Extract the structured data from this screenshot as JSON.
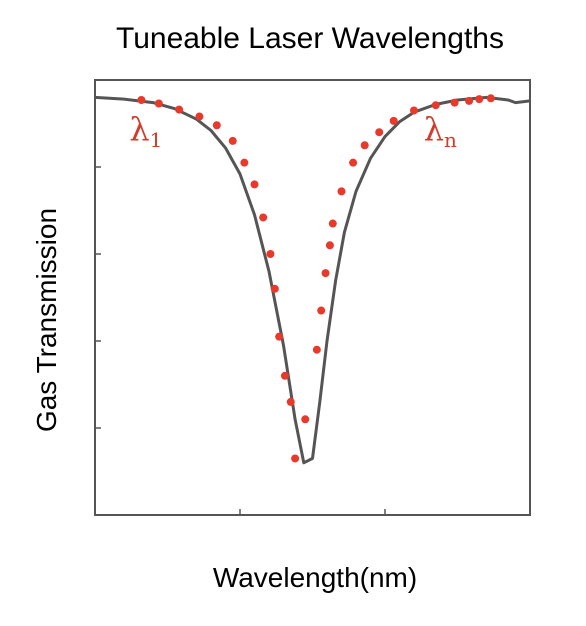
{
  "chart_data": {
    "type": "line",
    "title": "Tuneable Laser Wavelengths",
    "xlabel": "Wavelength(nm)",
    "ylabel": "Gas Transmission",
    "xlim": [
      0,
      3
    ],
    "ylim": [
      0,
      5
    ],
    "grid": false,
    "annotations": [
      {
        "symbol": "λ",
        "subscript": "1",
        "x": 0.32,
        "y": 4.6
      },
      {
        "symbol": "λ",
        "subscript": "n",
        "x": 2.35,
        "y": 4.6
      }
    ],
    "series": [
      {
        "style": "line",
        "x": [
          0,
          0.2,
          0.4,
          0.55,
          0.7,
          0.8,
          0.9,
          1.0,
          1.1,
          1.2,
          1.3,
          1.38,
          1.44,
          1.5,
          1.55,
          1.6,
          1.66,
          1.72,
          1.8,
          1.9,
          2.0,
          2.1,
          2.2,
          2.35,
          2.5,
          2.7,
          2.85,
          2.9,
          3.0
        ],
        "y": [
          4.8,
          4.78,
          4.74,
          4.67,
          4.55,
          4.42,
          4.22,
          3.92,
          3.45,
          2.8,
          1.95,
          1.1,
          0.6,
          0.65,
          1.3,
          2.0,
          2.7,
          3.25,
          3.72,
          4.1,
          4.35,
          4.52,
          4.63,
          4.72,
          4.77,
          4.8,
          4.77,
          4.74,
          4.76
        ]
      },
      {
        "style": "markers",
        "x": [
          0.32,
          0.44,
          0.58,
          0.72,
          0.84,
          0.95,
          1.03,
          1.1,
          1.16,
          1.21,
          1.24,
          1.27,
          1.31,
          1.35,
          1.38,
          1.45,
          1.53,
          1.56,
          1.59,
          1.62,
          1.64,
          1.7,
          1.78,
          1.86,
          1.96,
          2.06,
          2.2,
          2.35,
          2.48,
          2.58,
          2.65,
          2.73
        ],
        "y": [
          4.77,
          4.73,
          4.66,
          4.58,
          4.48,
          4.3,
          4.05,
          3.8,
          3.42,
          3.0,
          2.6,
          2.05,
          1.6,
          1.3,
          0.65,
          1.1,
          1.9,
          2.35,
          2.78,
          3.1,
          3.35,
          3.72,
          4.05,
          4.25,
          4.4,
          4.53,
          4.65,
          4.71,
          4.74,
          4.76,
          4.78,
          4.79
        ]
      }
    ],
    "colors": {
      "line": "#555555",
      "marker": "#e8392b",
      "frame": "#555555",
      "annotation": "#d63a2a"
    }
  }
}
